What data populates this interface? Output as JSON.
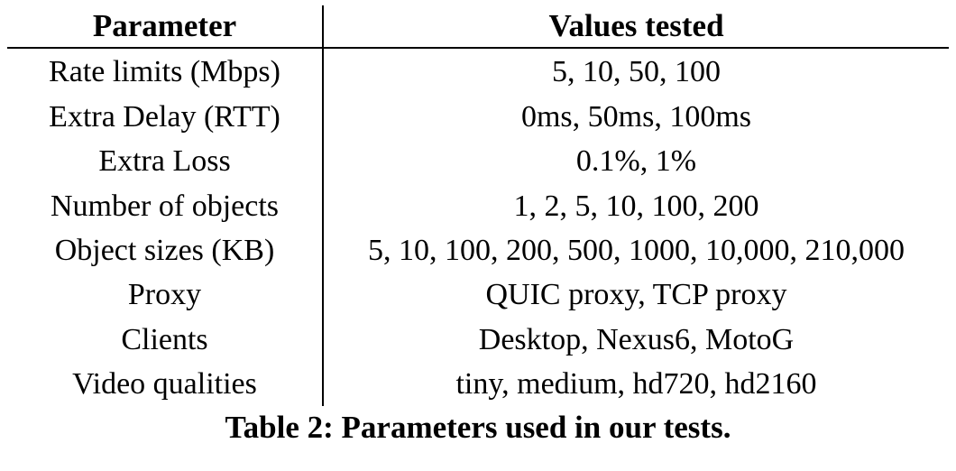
{
  "table": {
    "headers": [
      "Parameter",
      "Values tested"
    ],
    "rows": [
      [
        "Rate limits (Mbps)",
        "5, 10, 50, 100"
      ],
      [
        "Extra Delay (RTT)",
        "0ms, 50ms, 100ms"
      ],
      [
        "Extra Loss",
        "0.1%, 1%"
      ],
      [
        "Number of objects",
        "1, 2, 5, 10, 100, 200"
      ],
      [
        "Object sizes (KB)",
        "5, 10, 100, 200, 500, 1000, 10,000, 210,000"
      ],
      [
        "Proxy",
        "QUIC proxy, TCP proxy"
      ],
      [
        "Clients",
        "Desktop, Nexus6, MotoG"
      ],
      [
        "Video qualities",
        "tiny, medium, hd720, hd2160"
      ]
    ]
  },
  "caption": "Table 2: Parameters used in our tests."
}
